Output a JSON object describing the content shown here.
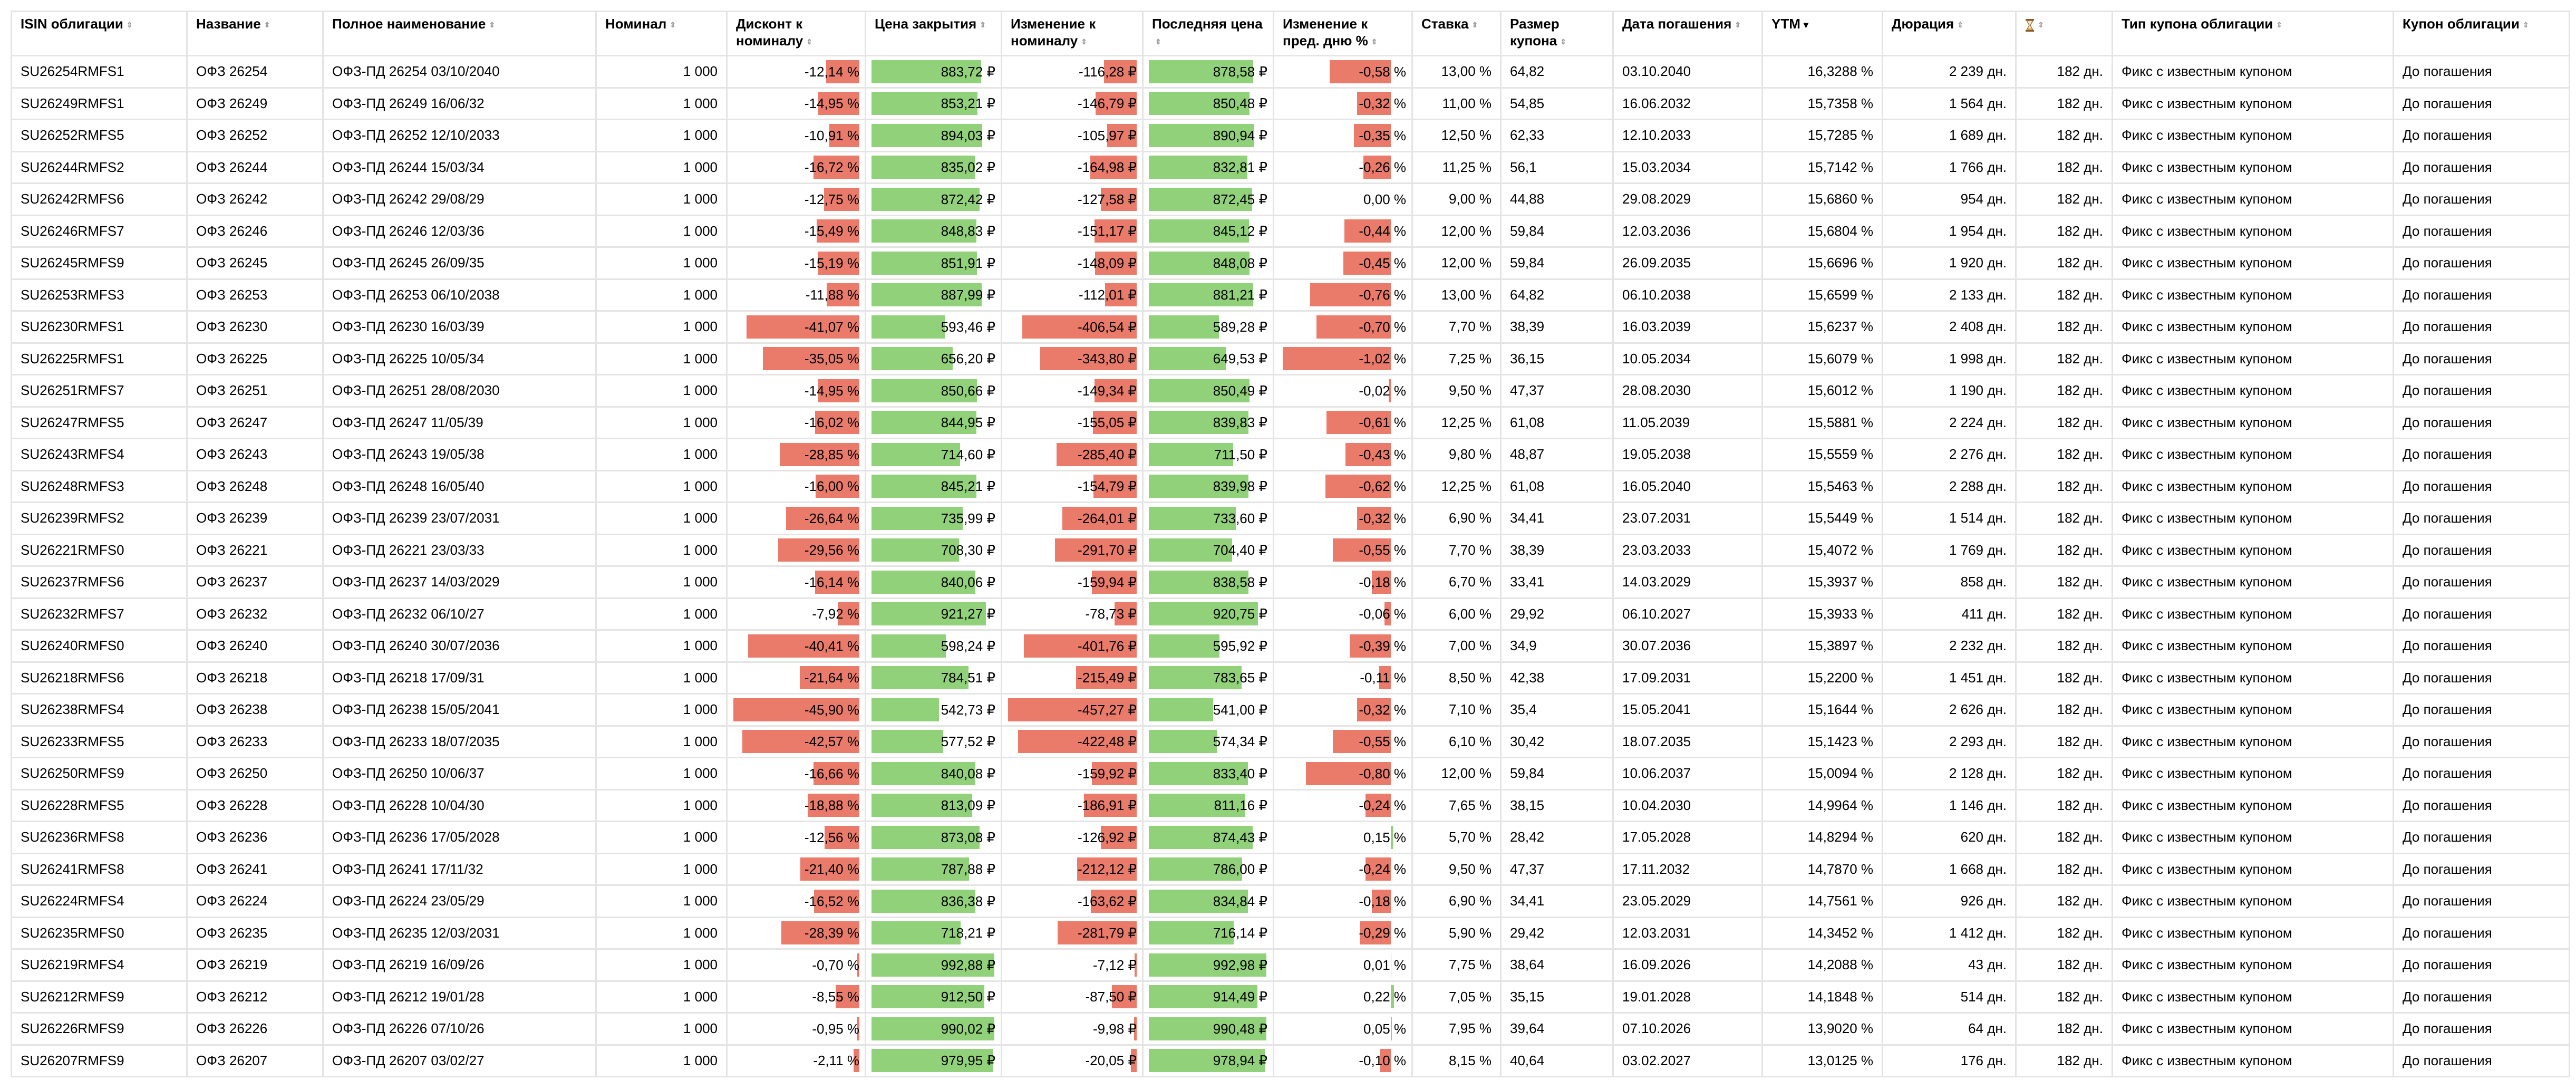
{
  "columns": [
    {
      "label": "ISIN облигации"
    },
    {
      "label": "Название"
    },
    {
      "label": "Полное наименование"
    },
    {
      "label": "Номинал"
    },
    {
      "label": "Дисконт к номиналу"
    },
    {
      "label": "Цена закрытия"
    },
    {
      "label": "Изменение к номиналу"
    },
    {
      "label": "Последняя цена"
    },
    {
      "label": "Изменение к пред. дню %"
    },
    {
      "label": "Ставка"
    },
    {
      "label": "Размер купона"
    },
    {
      "label": "Дата погашения"
    },
    {
      "label": "YTM"
    },
    {
      "label": "Дюрация"
    },
    {
      "label": "",
      "icon": "hourglass-icon"
    },
    {
      "label": "Тип купона облигации"
    },
    {
      "label": "Купон облигации"
    }
  ],
  "sorted_column": "YTM",
  "colors": {
    "negative": "#ea7b6b",
    "positive": "#91d17a"
  },
  "rows": [
    {
      "isin": "SU26254RMFS1",
      "name": "ОФЗ 26254",
      "full": "ОФЗ-ПД 26254 03/10/2040",
      "nominal": "1 000",
      "discount": "-12,14 %",
      "close": "883,72 ₽",
      "chg": "-116,28 ₽",
      "last": "878,58 ₽",
      "pct": "-0,58 %",
      "rate": "13,00 %",
      "coupon": "64,82",
      "mat": "03.10.2040",
      "ytm": "16,3288 %",
      "dur": "2 239 дн.",
      "period": "182 дн.",
      "type": "Фикс с известным купоном",
      "kupon": "До погашения",
      "d": -12.14,
      "c": 883.72,
      "n": -116.28,
      "l": 878.58,
      "p": -0.58
    },
    {
      "isin": "SU26249RMFS1",
      "name": "ОФЗ 26249",
      "full": "ОФЗ-ПД 26249 16/06/32",
      "nominal": "1 000",
      "discount": "-14,95 %",
      "close": "853,21 ₽",
      "chg": "-146,79 ₽",
      "last": "850,48 ₽",
      "pct": "-0,32 %",
      "rate": "11,00 %",
      "coupon": "54,85",
      "mat": "16.06.2032",
      "ytm": "15,7358 %",
      "dur": "1 564 дн.",
      "period": "182 дн.",
      "type": "Фикс с известным купоном",
      "kupon": "До погашения",
      "d": -14.95,
      "c": 853.21,
      "n": -146.79,
      "l": 850.48,
      "p": -0.32
    },
    {
      "isin": "SU26252RMFS5",
      "name": "ОФЗ 26252",
      "full": "ОФЗ-ПД 26252 12/10/2033",
      "nominal": "1 000",
      "discount": "-10,91 %",
      "close": "894,03 ₽",
      "chg": "-105,97 ₽",
      "last": "890,94 ₽",
      "pct": "-0,35 %",
      "rate": "12,50 %",
      "coupon": "62,33",
      "mat": "12.10.2033",
      "ytm": "15,7285 %",
      "dur": "1 689 дн.",
      "period": "182 дн.",
      "type": "Фикс с известным купоном",
      "kupon": "До погашения",
      "d": -10.91,
      "c": 894.03,
      "n": -105.97,
      "l": 890.94,
      "p": -0.35
    },
    {
      "isin": "SU26244RMFS2",
      "name": "ОФЗ 26244",
      "full": "ОФЗ-ПД 26244 15/03/34",
      "nominal": "1 000",
      "discount": "-16,72 %",
      "close": "835,02 ₽",
      "chg": "-164,98 ₽",
      "last": "832,81 ₽",
      "pct": "-0,26 %",
      "rate": "11,25 %",
      "coupon": "56,1",
      "mat": "15.03.2034",
      "ytm": "15,7142 %",
      "dur": "1 766 дн.",
      "period": "182 дн.",
      "type": "Фикс с известным купоном",
      "kupon": "До погашения",
      "d": -16.72,
      "c": 835.02,
      "n": -164.98,
      "l": 832.81,
      "p": -0.26
    },
    {
      "isin": "SU26242RMFS6",
      "name": "ОФЗ 26242",
      "full": "ОФЗ-ПД 26242 29/08/29",
      "nominal": "1 000",
      "discount": "-12,75 %",
      "close": "872,42 ₽",
      "chg": "-127,58 ₽",
      "last": "872,45 ₽",
      "pct": "0,00 %",
      "rate": "9,00 %",
      "coupon": "44,88",
      "mat": "29.08.2029",
      "ytm": "15,6860 %",
      "dur": "954 дн.",
      "period": "182 дн.",
      "type": "Фикс с известным купоном",
      "kupon": "До погашения",
      "d": -12.75,
      "c": 872.42,
      "n": -127.58,
      "l": 872.45,
      "p": 0
    },
    {
      "isin": "SU26246RMFS7",
      "name": "ОФЗ 26246",
      "full": "ОФЗ-ПД 26246 12/03/36",
      "nominal": "1 000",
      "discount": "-15,49 %",
      "close": "848,83 ₽",
      "chg": "-151,17 ₽",
      "last": "845,12 ₽",
      "pct": "-0,44 %",
      "rate": "12,00 %",
      "coupon": "59,84",
      "mat": "12.03.2036",
      "ytm": "15,6804 %",
      "dur": "1 954 дн.",
      "period": "182 дн.",
      "type": "Фикс с известным купоном",
      "kupon": "До погашения",
      "d": -15.49,
      "c": 848.83,
      "n": -151.17,
      "l": 845.12,
      "p": -0.44
    },
    {
      "isin": "SU26245RMFS9",
      "name": "ОФЗ 26245",
      "full": "ОФЗ-ПД 26245 26/09/35",
      "nominal": "1 000",
      "discount": "-15,19 %",
      "close": "851,91 ₽",
      "chg": "-148,09 ₽",
      "last": "848,08 ₽",
      "pct": "-0,45 %",
      "rate": "12,00 %",
      "coupon": "59,84",
      "mat": "26.09.2035",
      "ytm": "15,6696 %",
      "dur": "1 920 дн.",
      "period": "182 дн.",
      "type": "Фикс с известным купоном",
      "kupon": "До погашения",
      "d": -15.19,
      "c": 851.91,
      "n": -148.09,
      "l": 848.08,
      "p": -0.45
    },
    {
      "isin": "SU26253RMFS3",
      "name": "ОФЗ 26253",
      "full": "ОФЗ-ПД 26253 06/10/2038",
      "nominal": "1 000",
      "discount": "-11,88 %",
      "close": "887,99 ₽",
      "chg": "-112,01 ₽",
      "last": "881,21 ₽",
      "pct": "-0,76 %",
      "rate": "13,00 %",
      "coupon": "64,82",
      "mat": "06.10.2038",
      "ytm": "15,6599 %",
      "dur": "2 133 дн.",
      "period": "182 дн.",
      "type": "Фикс с известным купоном",
      "kupon": "До погашения",
      "d": -11.88,
      "c": 887.99,
      "n": -112.01,
      "l": 881.21,
      "p": -0.76
    },
    {
      "isin": "SU26230RMFS1",
      "name": "ОФЗ 26230",
      "full": "ОФЗ-ПД 26230 16/03/39",
      "nominal": "1 000",
      "discount": "-41,07 %",
      "close": "593,46 ₽",
      "chg": "-406,54 ₽",
      "last": "589,28 ₽",
      "pct": "-0,70 %",
      "rate": "7,70 %",
      "coupon": "38,39",
      "mat": "16.03.2039",
      "ytm": "15,6237 %",
      "dur": "2 408 дн.",
      "period": "182 дн.",
      "type": "Фикс с известным купоном",
      "kupon": "До погашения",
      "d": -41.07,
      "c": 593.46,
      "n": -406.54,
      "l": 589.28,
      "p": -0.7
    },
    {
      "isin": "SU26225RMFS1",
      "name": "ОФЗ 26225",
      "full": "ОФЗ-ПД 26225 10/05/34",
      "nominal": "1 000",
      "discount": "-35,05 %",
      "close": "656,20 ₽",
      "chg": "-343,80 ₽",
      "last": "649,53 ₽",
      "pct": "-1,02 %",
      "rate": "7,25 %",
      "coupon": "36,15",
      "mat": "10.05.2034",
      "ytm": "15,6079 %",
      "dur": "1 998 дн.",
      "period": "182 дн.",
      "type": "Фикс с известным купоном",
      "kupon": "До погашения",
      "d": -35.05,
      "c": 656.2,
      "n": -343.8,
      "l": 649.53,
      "p": -1.02
    },
    {
      "isin": "SU26251RMFS7",
      "name": "ОФЗ 26251",
      "full": "ОФЗ-ПД 26251 28/08/2030",
      "nominal": "1 000",
      "discount": "-14,95 %",
      "close": "850,66 ₽",
      "chg": "-149,34 ₽",
      "last": "850,49 ₽",
      "pct": "-0,02 %",
      "rate": "9,50 %",
      "coupon": "47,37",
      "mat": "28.08.2030",
      "ytm": "15,6012 %",
      "dur": "1 190 дн.",
      "period": "182 дн.",
      "type": "Фикс с известным купоном",
      "kupon": "До погашения",
      "d": -14.95,
      "c": 850.66,
      "n": -149.34,
      "l": 850.49,
      "p": -0.02
    },
    {
      "isin": "SU26247RMFS5",
      "name": "ОФЗ 26247",
      "full": "ОФЗ-ПД 26247 11/05/39",
      "nominal": "1 000",
      "discount": "-16,02 %",
      "close": "844,95 ₽",
      "chg": "-155,05 ₽",
      "last": "839,83 ₽",
      "pct": "-0,61 %",
      "rate": "12,25 %",
      "coupon": "61,08",
      "mat": "11.05.2039",
      "ytm": "15,5881 %",
      "dur": "2 224 дн.",
      "period": "182 дн.",
      "type": "Фикс с известным купоном",
      "kupon": "До погашения",
      "d": -16.02,
      "c": 844.95,
      "n": -155.05,
      "l": 839.83,
      "p": -0.61
    },
    {
      "isin": "SU26243RMFS4",
      "name": "ОФЗ 26243",
      "full": "ОФЗ-ПД 26243 19/05/38",
      "nominal": "1 000",
      "discount": "-28,85 %",
      "close": "714,60 ₽",
      "chg": "-285,40 ₽",
      "last": "711,50 ₽",
      "pct": "-0,43 %",
      "rate": "9,80 %",
      "coupon": "48,87",
      "mat": "19.05.2038",
      "ytm": "15,5559 %",
      "dur": "2 276 дн.",
      "period": "182 дн.",
      "type": "Фикс с известным купоном",
      "kupon": "До погашения",
      "d": -28.85,
      "c": 714.6,
      "n": -285.4,
      "l": 711.5,
      "p": -0.43
    },
    {
      "isin": "SU26248RMFS3",
      "name": "ОФЗ 26248",
      "full": "ОФЗ-ПД 26248 16/05/40",
      "nominal": "1 000",
      "discount": "-16,00 %",
      "close": "845,21 ₽",
      "chg": "-154,79 ₽",
      "last": "839,98 ₽",
      "pct": "-0,62 %",
      "rate": "12,25 %",
      "coupon": "61,08",
      "mat": "16.05.2040",
      "ytm": "15,5463 %",
      "dur": "2 288 дн.",
      "period": "182 дн.",
      "type": "Фикс с известным купоном",
      "kupon": "До погашения",
      "d": -16.0,
      "c": 845.21,
      "n": -154.79,
      "l": 839.98,
      "p": -0.62
    },
    {
      "isin": "SU26239RMFS2",
      "name": "ОФЗ 26239",
      "full": "ОФЗ-ПД 26239 23/07/2031",
      "nominal": "1 000",
      "discount": "-26,64 %",
      "close": "735,99 ₽",
      "chg": "-264,01 ₽",
      "last": "733,60 ₽",
      "pct": "-0,32 %",
      "rate": "6,90 %",
      "coupon": "34,41",
      "mat": "23.07.2031",
      "ytm": "15,5449 %",
      "dur": "1 514 дн.",
      "period": "182 дн.",
      "type": "Фикс с известным купоном",
      "kupon": "До погашения",
      "d": -26.64,
      "c": 735.99,
      "n": -264.01,
      "l": 733.6,
      "p": -0.32
    },
    {
      "isin": "SU26221RMFS0",
      "name": "ОФЗ 26221",
      "full": "ОФЗ-ПД 26221 23/03/33",
      "nominal": "1 000",
      "discount": "-29,56 %",
      "close": "708,30 ₽",
      "chg": "-291,70 ₽",
      "last": "704,40 ₽",
      "pct": "-0,55 %",
      "rate": "7,70 %",
      "coupon": "38,39",
      "mat": "23.03.2033",
      "ytm": "15,4072 %",
      "dur": "1 769 дн.",
      "period": "182 дн.",
      "type": "Фикс с известным купоном",
      "kupon": "До погашения",
      "d": -29.56,
      "c": 708.3,
      "n": -291.7,
      "l": 704.4,
      "p": -0.55
    },
    {
      "isin": "SU26237RMFS6",
      "name": "ОФЗ 26237",
      "full": "ОФЗ-ПД 26237 14/03/2029",
      "nominal": "1 000",
      "discount": "-16,14 %",
      "close": "840,06 ₽",
      "chg": "-159,94 ₽",
      "last": "838,58 ₽",
      "pct": "-0,18 %",
      "rate": "6,70 %",
      "coupon": "33,41",
      "mat": "14.03.2029",
      "ytm": "15,3937 %",
      "dur": "858 дн.",
      "period": "182 дн.",
      "type": "Фикс с известным купоном",
      "kupon": "До погашения",
      "d": -16.14,
      "c": 840.06,
      "n": -159.94,
      "l": 838.58,
      "p": -0.18
    },
    {
      "isin": "SU26232RMFS7",
      "name": "ОФЗ 26232",
      "full": "ОФЗ-ПД 26232 06/10/27",
      "nominal": "1 000",
      "discount": "-7,92 %",
      "close": "921,27 ₽",
      "chg": "-78,73 ₽",
      "last": "920,75 ₽",
      "pct": "-0,06 %",
      "rate": "6,00 %",
      "coupon": "29,92",
      "mat": "06.10.2027",
      "ytm": "15,3933 %",
      "dur": "411 дн.",
      "period": "182 дн.",
      "type": "Фикс с известным купоном",
      "kupon": "До погашения",
      "d": -7.92,
      "c": 921.27,
      "n": -78.73,
      "l": 920.75,
      "p": -0.06
    },
    {
      "isin": "SU26240RMFS0",
      "name": "ОФЗ 26240",
      "full": "ОФЗ-ПД 26240 30/07/2036",
      "nominal": "1 000",
      "discount": "-40,41 %",
      "close": "598,24 ₽",
      "chg": "-401,76 ₽",
      "last": "595,92 ₽",
      "pct": "-0,39 %",
      "rate": "7,00 %",
      "coupon": "34,9",
      "mat": "30.07.2036",
      "ytm": "15,3897 %",
      "dur": "2 232 дн.",
      "period": "182 дн.",
      "type": "Фикс с известным купоном",
      "kupon": "До погашения",
      "d": -40.41,
      "c": 598.24,
      "n": -401.76,
      "l": 595.92,
      "p": -0.39
    },
    {
      "isin": "SU26218RMFS6",
      "name": "ОФЗ 26218",
      "full": "ОФЗ-ПД 26218 17/09/31",
      "nominal": "1 000",
      "discount": "-21,64 %",
      "close": "784,51 ₽",
      "chg": "-215,49 ₽",
      "last": "783,65 ₽",
      "pct": "-0,11 %",
      "rate": "8,50 %",
      "coupon": "42,38",
      "mat": "17.09.2031",
      "ytm": "15,2200 %",
      "dur": "1 451 дн.",
      "period": "182 дн.",
      "type": "Фикс с известным купоном",
      "kupon": "До погашения",
      "d": -21.64,
      "c": 784.51,
      "n": -215.49,
      "l": 783.65,
      "p": -0.11
    },
    {
      "isin": "SU26238RMFS4",
      "name": "ОФЗ 26238",
      "full": "ОФЗ-ПД 26238 15/05/2041",
      "nominal": "1 000",
      "discount": "-45,90 %",
      "close": "542,73 ₽",
      "chg": "-457,27 ₽",
      "last": "541,00 ₽",
      "pct": "-0,32 %",
      "rate": "7,10 %",
      "coupon": "35,4",
      "mat": "15.05.2041",
      "ytm": "15,1644 %",
      "dur": "2 626 дн.",
      "period": "182 дн.",
      "type": "Фикс с известным купоном",
      "kupon": "До погашения",
      "d": -45.9,
      "c": 542.73,
      "n": -457.27,
      "l": 541.0,
      "p": -0.32
    },
    {
      "isin": "SU26233RMFS5",
      "name": "ОФЗ 26233",
      "full": "ОФЗ-ПД 26233 18/07/2035",
      "nominal": "1 000",
      "discount": "-42,57 %",
      "close": "577,52 ₽",
      "chg": "-422,48 ₽",
      "last": "574,34 ₽",
      "pct": "-0,55 %",
      "rate": "6,10 %",
      "coupon": "30,42",
      "mat": "18.07.2035",
      "ytm": "15,1423 %",
      "dur": "2 293 дн.",
      "period": "182 дн.",
      "type": "Фикс с известным купоном",
      "kupon": "До погашения",
      "d": -42.57,
      "c": 577.52,
      "n": -422.48,
      "l": 574.34,
      "p": -0.55
    },
    {
      "isin": "SU26250RMFS9",
      "name": "ОФЗ 26250",
      "full": "ОФЗ-ПД 26250 10/06/37",
      "nominal": "1 000",
      "discount": "-16,66 %",
      "close": "840,08 ₽",
      "chg": "-159,92 ₽",
      "last": "833,40 ₽",
      "pct": "-0,80 %",
      "rate": "12,00 %",
      "coupon": "59,84",
      "mat": "10.06.2037",
      "ytm": "15,0094 %",
      "dur": "2 128 дн.",
      "period": "182 дн.",
      "type": "Фикс с известным купоном",
      "kupon": "До погашения",
      "d": -16.66,
      "c": 840.08,
      "n": -159.92,
      "l": 833.4,
      "p": -0.8
    },
    {
      "isin": "SU26228RMFS5",
      "name": "ОФЗ 26228",
      "full": "ОФЗ-ПД 26228 10/04/30",
      "nominal": "1 000",
      "discount": "-18,88 %",
      "close": "813,09 ₽",
      "chg": "-186,91 ₽",
      "last": "811,16 ₽",
      "pct": "-0,24 %",
      "rate": "7,65 %",
      "coupon": "38,15",
      "mat": "10.04.2030",
      "ytm": "14,9964 %",
      "dur": "1 146 дн.",
      "period": "182 дн.",
      "type": "Фикс с известным купоном",
      "kupon": "До погашения",
      "d": -18.88,
      "c": 813.09,
      "n": -186.91,
      "l": 811.16,
      "p": -0.24
    },
    {
      "isin": "SU26236RMFS8",
      "name": "ОФЗ 26236",
      "full": "ОФЗ-ПД 26236 17/05/2028",
      "nominal": "1 000",
      "discount": "-12,56 %",
      "close": "873,08 ₽",
      "chg": "-126,92 ₽",
      "last": "874,43 ₽",
      "pct": "0,15 %",
      "rate": "5,70 %",
      "coupon": "28,42",
      "mat": "17.05.2028",
      "ytm": "14,8294 %",
      "dur": "620 дн.",
      "period": "182 дн.",
      "type": "Фикс с известным купоном",
      "kupon": "До погашения",
      "d": -12.56,
      "c": 873.08,
      "n": -126.92,
      "l": 874.43,
      "p": 0.15
    },
    {
      "isin": "SU26241RMFS8",
      "name": "ОФЗ 26241",
      "full": "ОФЗ-ПД 26241 17/11/32",
      "nominal": "1 000",
      "discount": "-21,40 %",
      "close": "787,88 ₽",
      "chg": "-212,12 ₽",
      "last": "786,00 ₽",
      "pct": "-0,24 %",
      "rate": "9,50 %",
      "coupon": "47,37",
      "mat": "17.11.2032",
      "ytm": "14,7870 %",
      "dur": "1 668 дн.",
      "period": "182 дн.",
      "type": "Фикс с известным купоном",
      "kupon": "До погашения",
      "d": -21.4,
      "c": 787.88,
      "n": -212.12,
      "l": 786.0,
      "p": -0.24
    },
    {
      "isin": "SU26224RMFS4",
      "name": "ОФЗ 26224",
      "full": "ОФЗ-ПД 26224 23/05/29",
      "nominal": "1 000",
      "discount": "-16,52 %",
      "close": "836,38 ₽",
      "chg": "-163,62 ₽",
      "last": "834,84 ₽",
      "pct": "-0,18 %",
      "rate": "6,90 %",
      "coupon": "34,41",
      "mat": "23.05.2029",
      "ytm": "14,7561 %",
      "dur": "926 дн.",
      "period": "182 дн.",
      "type": "Фикс с известным купоном",
      "kupon": "До погашения",
      "d": -16.52,
      "c": 836.38,
      "n": -163.62,
      "l": 834.84,
      "p": -0.18
    },
    {
      "isin": "SU26235RMFS0",
      "name": "ОФЗ 26235",
      "full": "ОФЗ-ПД 26235 12/03/2031",
      "nominal": "1 000",
      "discount": "-28,39 %",
      "close": "718,21 ₽",
      "chg": "-281,79 ₽",
      "last": "716,14 ₽",
      "pct": "-0,29 %",
      "rate": "5,90 %",
      "coupon": "29,42",
      "mat": "12.03.2031",
      "ytm": "14,3452 %",
      "dur": "1 412 дн.",
      "period": "182 дн.",
      "type": "Фикс с известным купоном",
      "kupon": "До погашения",
      "d": -28.39,
      "c": 718.21,
      "n": -281.79,
      "l": 716.14,
      "p": -0.29
    },
    {
      "isin": "SU26219RMFS4",
      "name": "ОФЗ 26219",
      "full": "ОФЗ-ПД 26219 16/09/26",
      "nominal": "1 000",
      "discount": "-0,70 %",
      "close": "992,88 ₽",
      "chg": "-7,12 ₽",
      "last": "992,98 ₽",
      "pct": "0,01 %",
      "rate": "7,75 %",
      "coupon": "38,64",
      "mat": "16.09.2026",
      "ytm": "14,2088 %",
      "dur": "43 дн.",
      "period": "182 дн.",
      "type": "Фикс с известным купоном",
      "kupon": "До погашения",
      "d": -0.7,
      "c": 992.88,
      "n": -7.12,
      "l": 992.98,
      "p": 0.01
    },
    {
      "isin": "SU26212RMFS9",
      "name": "ОФЗ 26212",
      "full": "ОФЗ-ПД 26212 19/01/28",
      "nominal": "1 000",
      "discount": "-8,55 %",
      "close": "912,50 ₽",
      "chg": "-87,50 ₽",
      "last": "914,49 ₽",
      "pct": "0,22 %",
      "rate": "7,05 %",
      "coupon": "35,15",
      "mat": "19.01.2028",
      "ytm": "14,1848 %",
      "dur": "514 дн.",
      "period": "182 дн.",
      "type": "Фикс с известным купоном",
      "kupon": "До погашения",
      "d": -8.55,
      "c": 912.5,
      "n": -87.5,
      "l": 914.49,
      "p": 0.22
    },
    {
      "isin": "SU26226RMFS9",
      "name": "ОФЗ 26226",
      "full": "ОФЗ-ПД 26226 07/10/26",
      "nominal": "1 000",
      "discount": "-0,95 %",
      "close": "990,02 ₽",
      "chg": "-9,98 ₽",
      "last": "990,48 ₽",
      "pct": "0,05 %",
      "rate": "7,95 %",
      "coupon": "39,64",
      "mat": "07.10.2026",
      "ytm": "13,9020 %",
      "dur": "64 дн.",
      "period": "182 дн.",
      "type": "Фикс с известным купоном",
      "kupon": "До погашения",
      "d": -0.95,
      "c": 990.02,
      "n": -9.98,
      "l": 990.48,
      "p": 0.05
    },
    {
      "isin": "SU26207RMFS9",
      "name": "ОФЗ 26207",
      "full": "ОФЗ-ПД 26207 03/02/27",
      "nominal": "1 000",
      "discount": "-2,11 %",
      "close": "979,95 ₽",
      "chg": "-20,05 ₽",
      "last": "978,94 ₽",
      "pct": "-0,10 %",
      "rate": "8,15 %",
      "coupon": "40,64",
      "mat": "03.02.2027",
      "ytm": "13,0125 %",
      "dur": "176 дн.",
      "period": "182 дн.",
      "type": "Фикс с известным купоном",
      "kupon": "До погашения",
      "d": -2.11,
      "c": 979.95,
      "n": -20.05,
      "l": 978.94,
      "p": -0.1
    }
  ]
}
